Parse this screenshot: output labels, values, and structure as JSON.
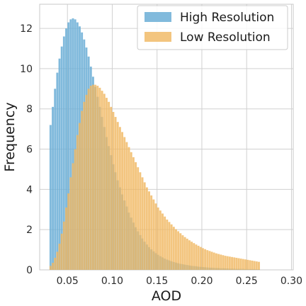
{
  "chart_data": {
    "type": "histogram",
    "xlabel": "AOD",
    "ylabel": "Frequency",
    "xlim": [
      0.019,
      0.302
    ],
    "ylim": [
      0,
      13.2
    ],
    "xticks": [
      0.05,
      0.1,
      0.15,
      0.2,
      0.25,
      0.3
    ],
    "xtick_labels": [
      "0.05",
      "0.10",
      "0.15",
      "0.20",
      "0.25",
      "0.30"
    ],
    "yticks": [
      0,
      2,
      4,
      6,
      8,
      10,
      12
    ],
    "ytick_labels": [
      "0",
      "2",
      "4",
      "6",
      "8",
      "10",
      "12"
    ],
    "grid": true,
    "legend_position": "top-right",
    "bin_start": 0.03,
    "bin_width": 0.0025,
    "series": [
      {
        "name": "High Resolution",
        "color": "#6baed6",
        "opacity": 0.85,
        "values": [
          7.2,
          8.1,
          9.0,
          9.8,
          10.5,
          11.1,
          11.6,
          12.0,
          12.3,
          12.45,
          12.5,
          12.45,
          12.3,
          12.1,
          11.8,
          11.45,
          11.05,
          10.6,
          10.1,
          9.6,
          9.1,
          8.6,
          8.1,
          7.6,
          7.1,
          6.6,
          6.15,
          5.7,
          5.25,
          4.85,
          4.45,
          4.1,
          3.75,
          3.45,
          3.15,
          2.85,
          2.6,
          2.35,
          2.12,
          1.92,
          1.73,
          1.56,
          1.4,
          1.26,
          1.13,
          1.02,
          0.92,
          0.83,
          0.75,
          0.68,
          0.62,
          0.56,
          0.51,
          0.47,
          0.43,
          0.39,
          0.36,
          0.33,
          0.3,
          0.28,
          0.26,
          0.24,
          0.22,
          0.2,
          0.19,
          0.18,
          0.16,
          0.15,
          0.14,
          0.13,
          0.12,
          0.11,
          0.11,
          0.1,
          0.09,
          0.09,
          0.08,
          0.08,
          0.07,
          0.07,
          0.06,
          0.06,
          0.06,
          0.05,
          0.05,
          0.05,
          0.05,
          0.04,
          0.04,
          0.04,
          0.04,
          0.04,
          0.03,
          0.03
        ]
      },
      {
        "name": "Low Resolution",
        "color": "#f0b65f",
        "opacity": 0.8,
        "values": [
          0.2,
          0.35,
          0.6,
          0.9,
          1.3,
          1.8,
          2.4,
          3.1,
          3.8,
          4.6,
          5.3,
          6.0,
          6.7,
          7.3,
          7.9,
          8.35,
          8.7,
          9.0,
          9.15,
          9.2,
          9.2,
          9.15,
          9.05,
          8.9,
          8.75,
          8.55,
          8.35,
          8.1,
          7.85,
          7.6,
          7.35,
          7.1,
          6.85,
          6.6,
          6.35,
          6.1,
          5.85,
          5.6,
          5.35,
          5.1,
          4.85,
          4.6,
          4.35,
          4.1,
          3.9,
          3.7,
          3.5,
          3.3,
          3.1,
          2.95,
          2.8,
          2.65,
          2.5,
          2.38,
          2.26,
          2.14,
          2.02,
          1.92,
          1.82,
          1.72,
          1.63,
          1.55,
          1.47,
          1.4,
          1.33,
          1.26,
          1.2,
          1.14,
          1.08,
          1.03,
          0.98,
          0.94,
          0.9,
          0.86,
          0.82,
          0.79,
          0.76,
          0.73,
          0.7,
          0.68,
          0.66,
          0.64,
          0.62,
          0.6,
          0.58,
          0.56,
          0.54,
          0.52,
          0.5,
          0.48,
          0.46,
          0.44,
          0.42,
          0.4
        ]
      }
    ]
  }
}
